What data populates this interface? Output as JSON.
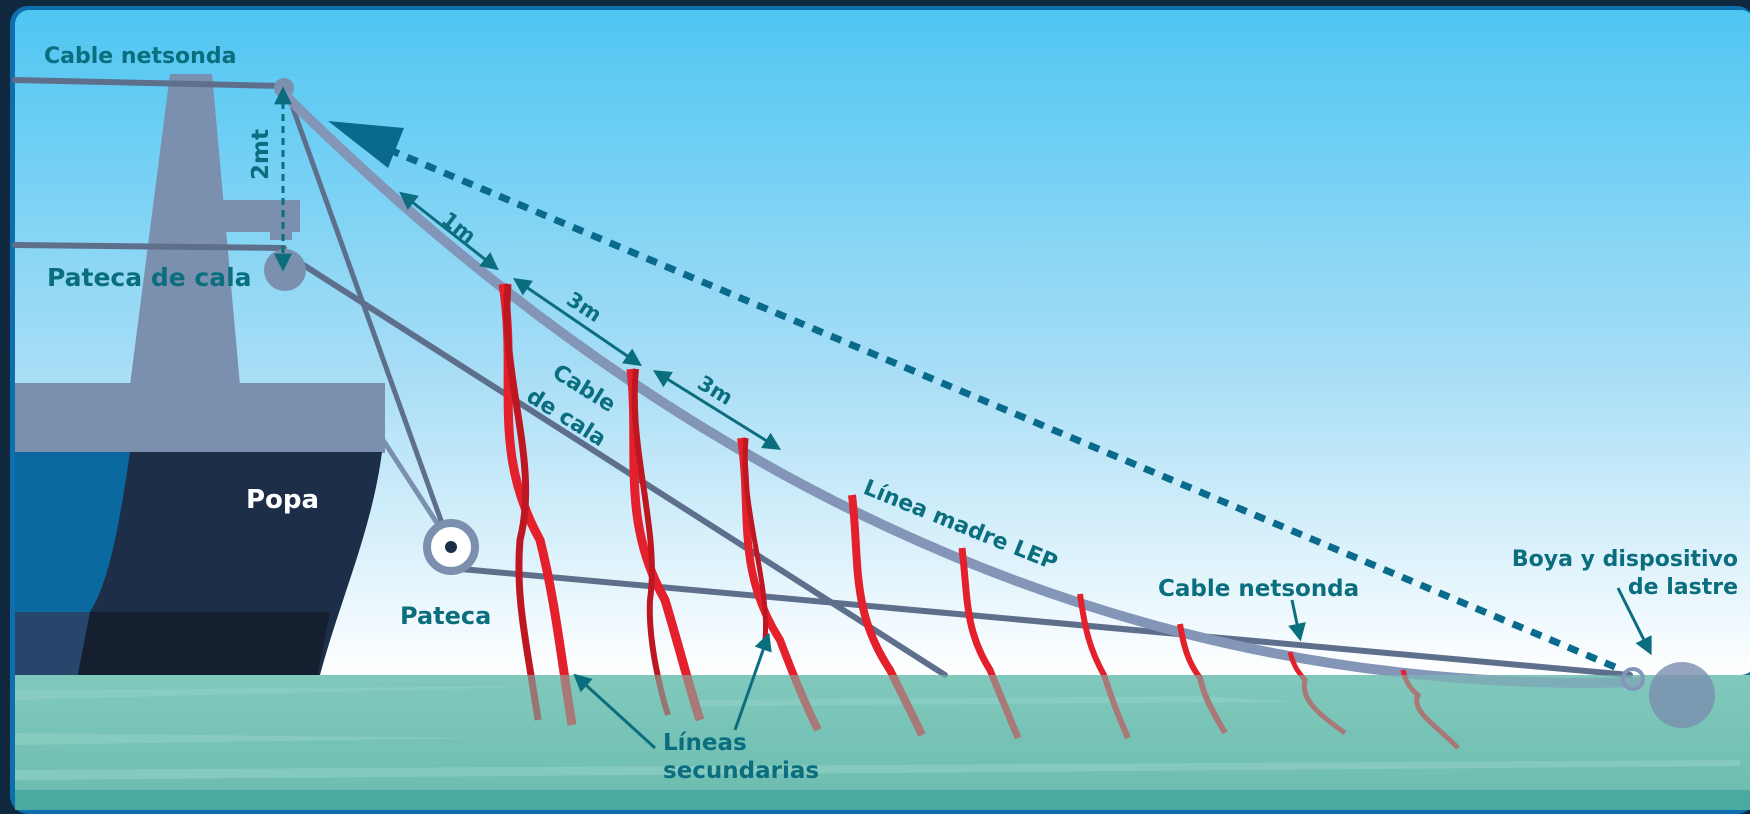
{
  "labels": {
    "cable_netsonda_top": "Cable netsonda",
    "two_mt": "2mt",
    "pateca_de_cala": "Pateca de cala",
    "one_m": "1m",
    "three_m_a": "3m",
    "three_m_b": "3m",
    "cable_line1": "Cable",
    "cable_line2": "de cala",
    "popa": "Popa",
    "pateca": "Pateca",
    "linea_madre": "Línea madre LEP",
    "cable_netsonda_mid": "Cable netsonda",
    "boya_line1": "Boya y dispositivo",
    "boya_line2": "de lastre",
    "lineas_line1": "Líneas",
    "lineas_line2": "secundarias"
  },
  "colors": {
    "sky_top": "#4ec6f2",
    "sky_bottom": "#ffffff",
    "water": "#79c2b6",
    "hull_dark": "#1d2e48",
    "hull_blue": "#0a6aa0",
    "ship_gray": "#7b8faf",
    "cable": "#5e6f8c",
    "main_line": "#8396b8",
    "streamer": "#e3202c",
    "label_teal": "#0b6e7e",
    "dotted_arrow": "#0a6a8c",
    "frame": "#0e6fae"
  },
  "icons": {
    "float": "buoy-icon",
    "pulley": "pulley-icon",
    "direction": "arrow-head-icon"
  }
}
